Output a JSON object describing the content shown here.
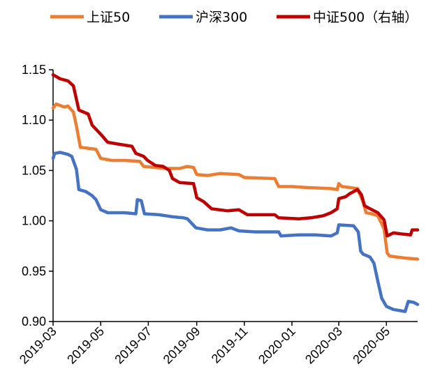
{
  "chart_data": {
    "type": "line",
    "title": "",
    "xlabel": "",
    "ylabel": "",
    "ylim": [
      0.9,
      1.15
    ],
    "y_ticks": [
      "0.90",
      "0.95",
      "1.00",
      "1.05",
      "1.10",
      "1.15"
    ],
    "x_range": [
      "2019-03",
      "2020-06-10"
    ],
    "x_ticks": [
      "2019-03",
      "2019-05",
      "2019-07",
      "2019-09",
      "2019-11",
      "2020-01",
      "2020-03",
      "2020-05"
    ],
    "grid": false,
    "legend_position": "top",
    "series": [
      {
        "name": "上证50",
        "color": "#ED7D31",
        "axis": "left",
        "points": [
          [
            "2019-03-01",
            1.112
          ],
          [
            "2019-03-05",
            1.116
          ],
          [
            "2019-03-15",
            1.113
          ],
          [
            "2019-03-20",
            1.114
          ],
          [
            "2019-03-27",
            1.108
          ],
          [
            "2019-03-31",
            1.094
          ],
          [
            "2019-04-05",
            1.073
          ],
          [
            "2019-04-15",
            1.072
          ],
          [
            "2019-04-25",
            1.071
          ],
          [
            "2019-05-01",
            1.062
          ],
          [
            "2019-05-15",
            1.06
          ],
          [
            "2019-06-01",
            1.06
          ],
          [
            "2019-06-20",
            1.059
          ],
          [
            "2019-06-25",
            1.054
          ],
          [
            "2019-07-10",
            1.053
          ],
          [
            "2019-07-25",
            1.052
          ],
          [
            "2019-08-10",
            1.052
          ],
          [
            "2019-08-20",
            1.054
          ],
          [
            "2019-08-28",
            1.053
          ],
          [
            "2019-09-01",
            1.046
          ],
          [
            "2019-09-15",
            1.045
          ],
          [
            "2019-10-01",
            1.047
          ],
          [
            "2019-10-25",
            1.046
          ],
          [
            "2019-11-01",
            1.043
          ],
          [
            "2019-12-10",
            1.042
          ],
          [
            "2019-12-15",
            1.034
          ],
          [
            "2020-01-01",
            1.034
          ],
          [
            "2020-01-20",
            1.033
          ],
          [
            "2020-02-20",
            1.032
          ],
          [
            "2020-02-28",
            1.031
          ],
          [
            "2020-03-01",
            1.037
          ],
          [
            "2020-03-05",
            1.034
          ],
          [
            "2020-03-15",
            1.033
          ],
          [
            "2020-03-25",
            1.032
          ],
          [
            "2020-04-01",
            1.019
          ],
          [
            "2020-04-05",
            1.008
          ],
          [
            "2020-04-12",
            1.007
          ],
          [
            "2020-04-20",
            1.005
          ],
          [
            "2020-04-25",
            0.997
          ],
          [
            "2020-04-28",
            0.992
          ],
          [
            "2020-05-02",
            0.968
          ],
          [
            "2020-05-05",
            0.965
          ],
          [
            "2020-05-15",
            0.964
          ],
          [
            "2020-05-25",
            0.963
          ],
          [
            "2020-06-10",
            0.962
          ]
        ]
      },
      {
        "name": "沪深300",
        "color": "#4472C4",
        "axis": "left",
        "points": [
          [
            "2019-03-01",
            1.062
          ],
          [
            "2019-03-03",
            1.067
          ],
          [
            "2019-03-10",
            1.068
          ],
          [
            "2019-03-20",
            1.066
          ],
          [
            "2019-03-25",
            1.064
          ],
          [
            "2019-03-31",
            1.051
          ],
          [
            "2019-04-03",
            1.031
          ],
          [
            "2019-04-12",
            1.029
          ],
          [
            "2019-04-20",
            1.025
          ],
          [
            "2019-04-25",
            1.021
          ],
          [
            "2019-05-01",
            1.011
          ],
          [
            "2019-05-10",
            1.008
          ],
          [
            "2019-06-01",
            1.008
          ],
          [
            "2019-06-15",
            1.007
          ],
          [
            "2019-06-17",
            1.021
          ],
          [
            "2019-06-22",
            1.02
          ],
          [
            "2019-06-26",
            1.007
          ],
          [
            "2019-07-15",
            1.006
          ],
          [
            "2019-08-01",
            1.004
          ],
          [
            "2019-08-15",
            1.003
          ],
          [
            "2019-08-20",
            1.002
          ],
          [
            "2019-08-31",
            0.993
          ],
          [
            "2019-09-15",
            0.991
          ],
          [
            "2019-10-01",
            0.991
          ],
          [
            "2019-10-15",
            0.993
          ],
          [
            "2019-10-25",
            0.99
          ],
          [
            "2019-11-15",
            0.989
          ],
          [
            "2019-12-15",
            0.989
          ],
          [
            "2019-12-18",
            0.985
          ],
          [
            "2020-01-10",
            0.986
          ],
          [
            "2020-01-31",
            0.986
          ],
          [
            "2020-02-20",
            0.985
          ],
          [
            "2020-02-28",
            0.988
          ],
          [
            "2020-03-01",
            0.996
          ],
          [
            "2020-03-20",
            0.995
          ],
          [
            "2020-03-26",
            0.989
          ],
          [
            "2020-03-29",
            0.97
          ],
          [
            "2020-04-01",
            0.967
          ],
          [
            "2020-04-10",
            0.964
          ],
          [
            "2020-04-15",
            0.958
          ],
          [
            "2020-04-20",
            0.94
          ],
          [
            "2020-04-25",
            0.923
          ],
          [
            "2020-05-01",
            0.915
          ],
          [
            "2020-05-10",
            0.912
          ],
          [
            "2020-05-25",
            0.91
          ],
          [
            "2020-05-29",
            0.92
          ],
          [
            "2020-06-05",
            0.919
          ],
          [
            "2020-06-10",
            0.917
          ]
        ]
      },
      {
        "name": "中证500（右轴）",
        "color": "#C00000",
        "axis": "right",
        "points": [
          [
            "2019-03-01",
            1.145
          ],
          [
            "2019-03-10",
            1.141
          ],
          [
            "2019-03-20",
            1.139
          ],
          [
            "2019-03-27",
            1.134
          ],
          [
            "2019-04-03",
            1.11
          ],
          [
            "2019-04-15",
            1.106
          ],
          [
            "2019-04-20",
            1.095
          ],
          [
            "2019-05-01",
            1.086
          ],
          [
            "2019-05-10",
            1.078
          ],
          [
            "2019-05-25",
            1.076
          ],
          [
            "2019-06-10",
            1.074
          ],
          [
            "2019-06-15",
            1.067
          ],
          [
            "2019-06-25",
            1.064
          ],
          [
            "2019-06-30",
            1.06
          ],
          [
            "2019-07-10",
            1.055
          ],
          [
            "2019-07-20",
            1.054
          ],
          [
            "2019-07-28",
            1.05
          ],
          [
            "2019-08-01",
            1.042
          ],
          [
            "2019-08-10",
            1.038
          ],
          [
            "2019-08-28",
            1.037
          ],
          [
            "2019-09-01",
            1.023
          ],
          [
            "2019-09-10",
            1.019
          ],
          [
            "2019-09-20",
            1.012
          ],
          [
            "2019-10-10",
            1.01
          ],
          [
            "2019-10-25",
            1.011
          ],
          [
            "2019-11-05",
            1.006
          ],
          [
            "2019-11-20",
            1.006
          ],
          [
            "2019-12-10",
            1.006
          ],
          [
            "2019-12-15",
            1.003
          ],
          [
            "2020-01-10",
            1.002
          ],
          [
            "2020-01-25",
            1.003
          ],
          [
            "2020-02-10",
            1.005
          ],
          [
            "2020-02-20",
            1.008
          ],
          [
            "2020-02-28",
            1.012
          ],
          [
            "2020-03-01",
            1.022
          ],
          [
            "2020-03-10",
            1.024
          ],
          [
            "2020-03-15",
            1.027
          ],
          [
            "2020-03-25",
            1.031
          ],
          [
            "2020-03-30",
            1.026
          ],
          [
            "2020-04-03",
            1.015
          ],
          [
            "2020-04-10",
            1.012
          ],
          [
            "2020-04-20",
            1.008
          ],
          [
            "2020-04-28",
            1.001
          ],
          [
            "2020-05-02",
            0.985
          ],
          [
            "2020-05-10",
            0.988
          ],
          [
            "2020-05-20",
            0.987
          ],
          [
            "2020-06-01",
            0.986
          ],
          [
            "2020-06-03",
            0.991
          ],
          [
            "2020-06-10",
            0.991
          ]
        ]
      }
    ]
  }
}
